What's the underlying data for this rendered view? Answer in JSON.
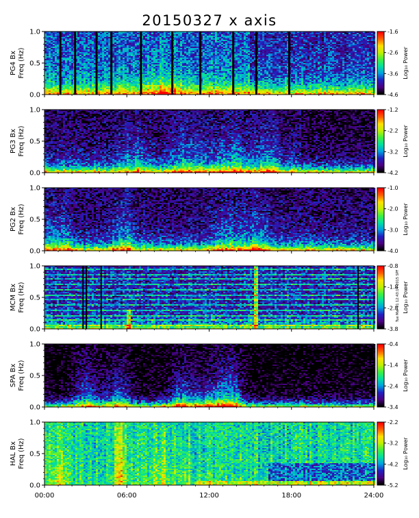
{
  "chart_data": {
    "title": "20150327 x axis",
    "type": "heatmap",
    "x_axis": {
      "range": [
        "00:00",
        "24:00"
      ],
      "tick_labels": [
        "00:00",
        "06:00",
        "12:00",
        "18:00",
        "24:00"
      ]
    },
    "panels": [
      {
        "station": "PG4",
        "ylabel_line1": "PG4  Bx",
        "ylabel_line2": "Freq (Hz)",
        "ylim": [
          0.0,
          1.0
        ],
        "yticks": [
          "0.0",
          "0.5",
          "1.0"
        ],
        "colorbar_label": "Log₁₀ Power",
        "colorbar_ticks": [
          "-1.6",
          "-2.6",
          "-3.6",
          "-4.6"
        ],
        "colorbar_range": [
          -4.6,
          -1.6
        ]
      },
      {
        "station": "PG3",
        "ylabel_line1": "PG3  Bx",
        "ylabel_line2": "Freq (Hz)",
        "ylim": [
          0.0,
          1.0
        ],
        "yticks": [
          "0.0",
          "0.5",
          "1.0"
        ],
        "colorbar_label": "Log₁₀ Power",
        "colorbar_ticks": [
          "-1.2",
          "-2.2",
          "-3.2",
          "-4.2"
        ],
        "colorbar_range": [
          -4.2,
          -1.2
        ]
      },
      {
        "station": "PG2",
        "ylabel_line1": "PG2  Bx",
        "ylabel_line2": "Freq (Hz)",
        "ylim": [
          0.0,
          1.0
        ],
        "yticks": [
          "0.0",
          "0.5",
          "1.0"
        ],
        "colorbar_label": "Log₁₀ Power",
        "colorbar_ticks": [
          "-1.0",
          "-2.0",
          "-3.0",
          "-4.0"
        ],
        "colorbar_range": [
          -4.0,
          -1.0
        ]
      },
      {
        "station": "MCM",
        "ylabel_line1": "MCM  Bx",
        "ylabel_line2": "Freq (Hz)",
        "ylim": [
          0.0,
          1.0
        ],
        "yticks": [
          "0.0",
          "0.5",
          "1.0"
        ],
        "colorbar_label": "Log₁₀ Power",
        "colorbar_ticks": [
          "-0.8",
          "-1.8",
          "-2.8",
          "-3.8"
        ],
        "colorbar_range": [
          -3.8,
          -0.8
        ]
      },
      {
        "station": "SPA",
        "ylabel_line1": "SPA  Bx",
        "ylabel_line2": "Freq (Hz)",
        "ylim": [
          0.0,
          1.0
        ],
        "yticks": [
          "0.0",
          "0.5",
          "1.0"
        ],
        "colorbar_label": "Log₁₀ Power",
        "colorbar_ticks": [
          "-0.4",
          "-1.4",
          "-2.4",
          "-3.4"
        ],
        "colorbar_range": [
          -3.4,
          -0.4
        ]
      },
      {
        "station": "HAL",
        "ylabel_line1": "HAL  Bx",
        "ylabel_line2": "Freq (Hz)",
        "ylim": [
          0.0,
          1.0
        ],
        "yticks": [
          "0.0",
          "0.5",
          "1.0"
        ],
        "colorbar_label": "Log₁₀ Power",
        "colorbar_ticks": [
          "-2.2",
          "-3.2",
          "-4.2",
          "-5.2"
        ],
        "colorbar_range": [
          -5.2,
          -2.2
        ]
      }
    ],
    "colormap": [
      "#000000",
      "#4b0082",
      "#2020c0",
      "#00a0e0",
      "#00e0a0",
      "#40f040",
      "#c0f000",
      "#ffe000",
      "#ff6000",
      "#ff0000"
    ],
    "side_note": "Tue Mar 31 12:43:14 2015 SPF"
  }
}
